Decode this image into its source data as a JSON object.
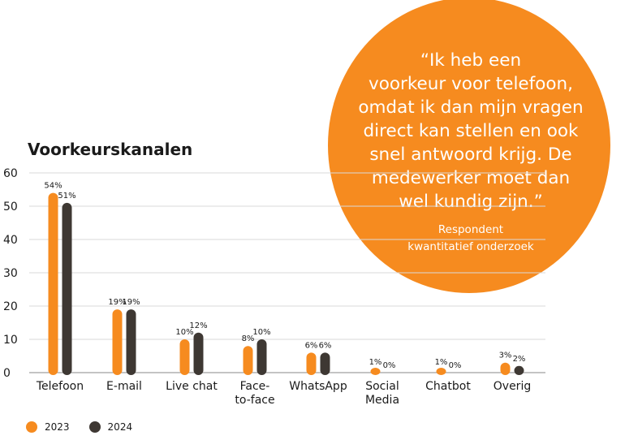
{
  "colors": {
    "s2023": "#f68b1f",
    "s2024": "#3e3833",
    "bubble": "#f68b1f",
    "grid": "#d9d9d9"
  },
  "title": "Voorkeurskanalen",
  "quote": {
    "text": "“Ik heb een\nvoorkeur voor telefoon,\nomdat ik dan mijn vragen\ndirect kan stellen en ook\nsnel antwoord krijg. De\nmedewerker moet dan\nwel kundig zijn.”",
    "attribution": "Respondent\nkwantitatief onderzoek"
  },
  "chart_data": {
    "type": "bar",
    "title": "Voorkeurskanalen",
    "xlabel": "",
    "ylabel": "",
    "ylim": [
      0,
      60
    ],
    "yticks": [
      0,
      10,
      20,
      30,
      40,
      50,
      60
    ],
    "grid": true,
    "legend_position": "bottom-left",
    "categories": [
      "Telefoon",
      "E-mail",
      "Live chat",
      "Face-\nto-face",
      "WhatsApp",
      "Social\nMedia",
      "Chatbot",
      "Overig"
    ],
    "series": [
      {
        "name": "2023",
        "values": [
          54,
          19,
          10,
          8,
          6,
          1,
          1,
          3
        ],
        "labels": [
          "54%",
          "19%",
          "10%",
          "8%",
          "6%",
          "1%",
          "1%",
          "3%"
        ]
      },
      {
        "name": "2024",
        "values": [
          51,
          19,
          12,
          10,
          6,
          0,
          0,
          2
        ],
        "labels": [
          "51%",
          "19%",
          "12%",
          "10%",
          "6%",
          "0%",
          "0%",
          "2%"
        ]
      }
    ]
  }
}
